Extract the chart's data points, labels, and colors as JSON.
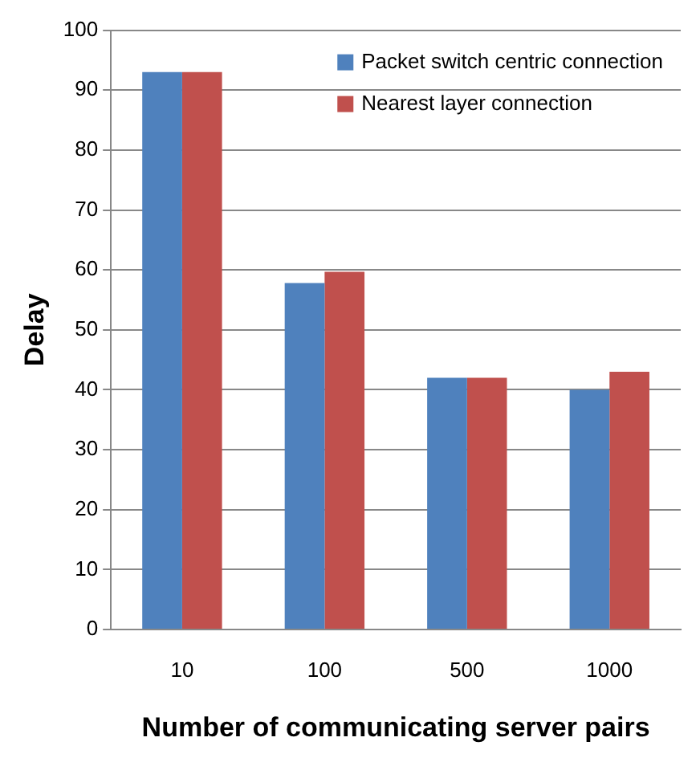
{
  "chart_data": {
    "type": "bar",
    "xlabel": "Number of communicating server pairs",
    "ylabel": "Delay",
    "categories": [
      "10",
      "100",
      "500",
      "1000"
    ],
    "series": [
      {
        "name": "Packet switch centric connection",
        "color": "#4f81bd",
        "values": [
          93,
          57.8,
          42,
          40
        ]
      },
      {
        "name": "Nearest layer connection",
        "color": "#c0504d",
        "values": [
          93,
          59.7,
          42,
          43
        ]
      }
    ],
    "ylim": [
      0,
      100
    ],
    "yticks": [
      0,
      10,
      20,
      30,
      40,
      50,
      60,
      70,
      80,
      90,
      100
    ],
    "grid": "y",
    "legend": "top right"
  }
}
